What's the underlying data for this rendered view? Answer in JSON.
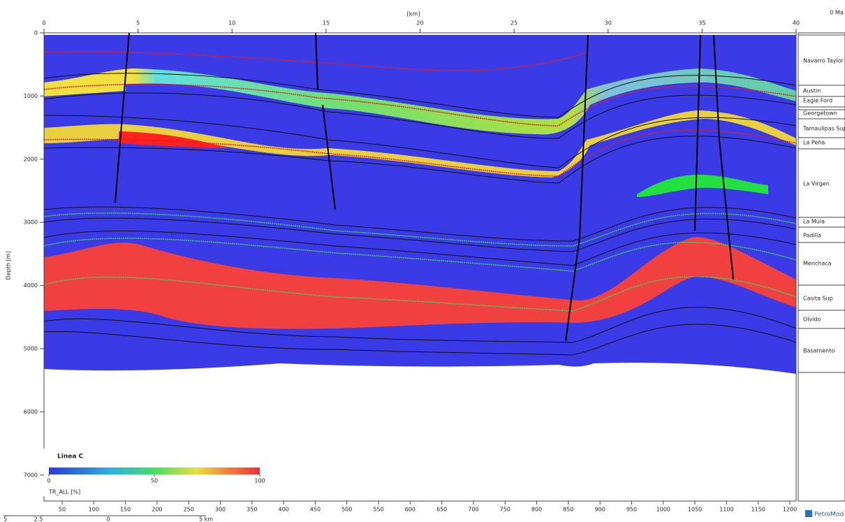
{
  "top_axis": {
    "label": "[km]",
    "ticks": [
      0,
      5,
      10,
      15,
      20,
      25,
      30,
      35,
      40
    ]
  },
  "age_label": "0 Ma",
  "depth_axis": {
    "label": "Depth [m]",
    "ticks": [
      0,
      1000,
      2000,
      3000,
      4000,
      5000,
      6000,
      7000
    ]
  },
  "bottom_axis": {
    "ticks": [
      50,
      100,
      150,
      200,
      250,
      300,
      350,
      400,
      450,
      500,
      550,
      600,
      650,
      700,
      750,
      800,
      850,
      900,
      950,
      1000,
      1050,
      1100,
      1150,
      1200
    ]
  },
  "scale_bar": {
    "labels": [
      "5",
      "2.5",
      "0",
      "5 km"
    ]
  },
  "layers": [
    "Navarro Taylor",
    "Austin",
    "Eagle Ford",
    "Georgetown",
    "Tamaulipas Sup",
    "La Peña",
    "La Virgen",
    "La Mula",
    "Padilla",
    "Menchaca",
    "Casita Sup",
    "Olvido",
    "Basamento"
  ],
  "legend": {
    "title": "Linea C",
    "ticks": [
      0,
      50,
      100
    ],
    "label": "TR_ALL [%]"
  },
  "brand": "PetroMod"
}
